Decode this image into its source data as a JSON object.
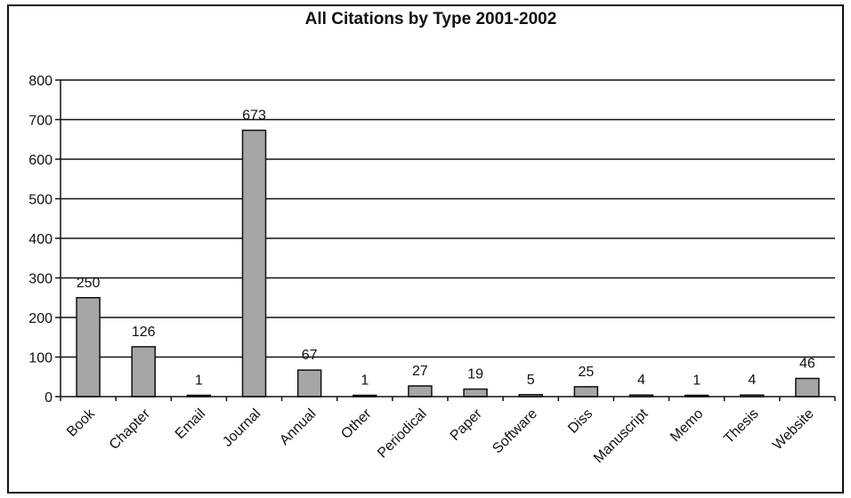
{
  "chart_data": {
    "type": "bar",
    "title": "All Citations by Type 2001-2002",
    "xlabel": "",
    "ylabel": "",
    "categories": [
      "Book",
      "Chapter",
      "Email",
      "Journal",
      "Annual",
      "Other",
      "Periodical",
      "Paper",
      "Software",
      "Diss",
      "Manuscript",
      "Memo",
      "Thesis",
      "Website"
    ],
    "values": [
      250,
      126,
      1,
      673,
      67,
      1,
      27,
      19,
      5,
      25,
      4,
      1,
      4,
      46
    ],
    "ylim": [
      0,
      800
    ],
    "yticks": [
      0,
      100,
      200,
      300,
      400,
      500,
      600,
      700,
      800
    ],
    "grid": true,
    "legend": "none",
    "data_labels": true,
    "bar_color": "#a6a6a6",
    "border_color": "#111111"
  }
}
